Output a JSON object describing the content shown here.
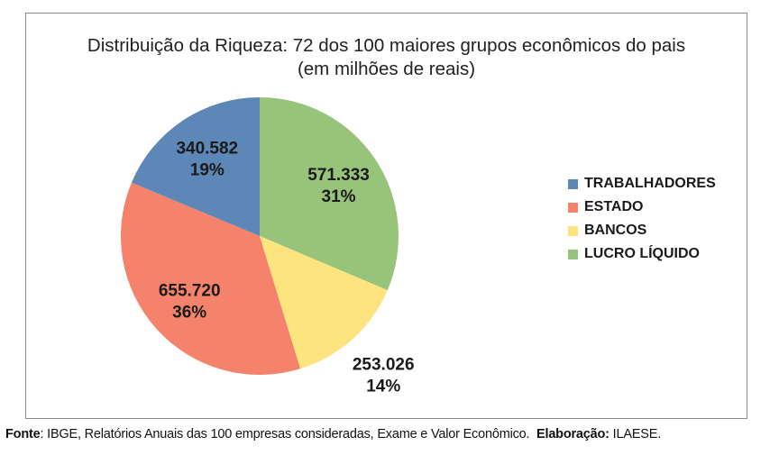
{
  "chart_data": {
    "type": "pie",
    "title": "Distribuição da Riqueza: 72 dos 100 maiores grupos econômicos do pais",
    "subtitle": "(em milhões de reais)",
    "legend_position": "right",
    "slices": [
      {
        "name": "LUCRO LÍQUIDO",
        "value": 571333,
        "value_label": "571.333",
        "percent_label": "31%",
        "percent": 31,
        "color": "#97c47a"
      },
      {
        "name": "BANCOS",
        "value": 253026,
        "value_label": "253.026",
        "percent_label": "14%",
        "percent": 14,
        "color": "#fde47f"
      },
      {
        "name": "ESTADO",
        "value": 655720,
        "value_label": "655.720",
        "percent_label": "36%",
        "percent": 36,
        "color": "#f5836b"
      },
      {
        "name": "TRABALHADORES",
        "value": 340582,
        "value_label": "340.582",
        "percent_label": "19%",
        "percent": 19,
        "color": "#5d87b6"
      }
    ],
    "legend_order": [
      "TRABALHADORES",
      "ESTADO",
      "BANCOS",
      "LUCRO LÍQUIDO"
    ]
  },
  "source": {
    "fonte_label": "Fonte",
    "fonte_text": ": IBGE, Relatórios Anuais das 100 empresas consideradas, Exame e Valor Econômico.",
    "elaboracao_label": "Elaboração:",
    "elaboracao_text": " ILAESE."
  }
}
